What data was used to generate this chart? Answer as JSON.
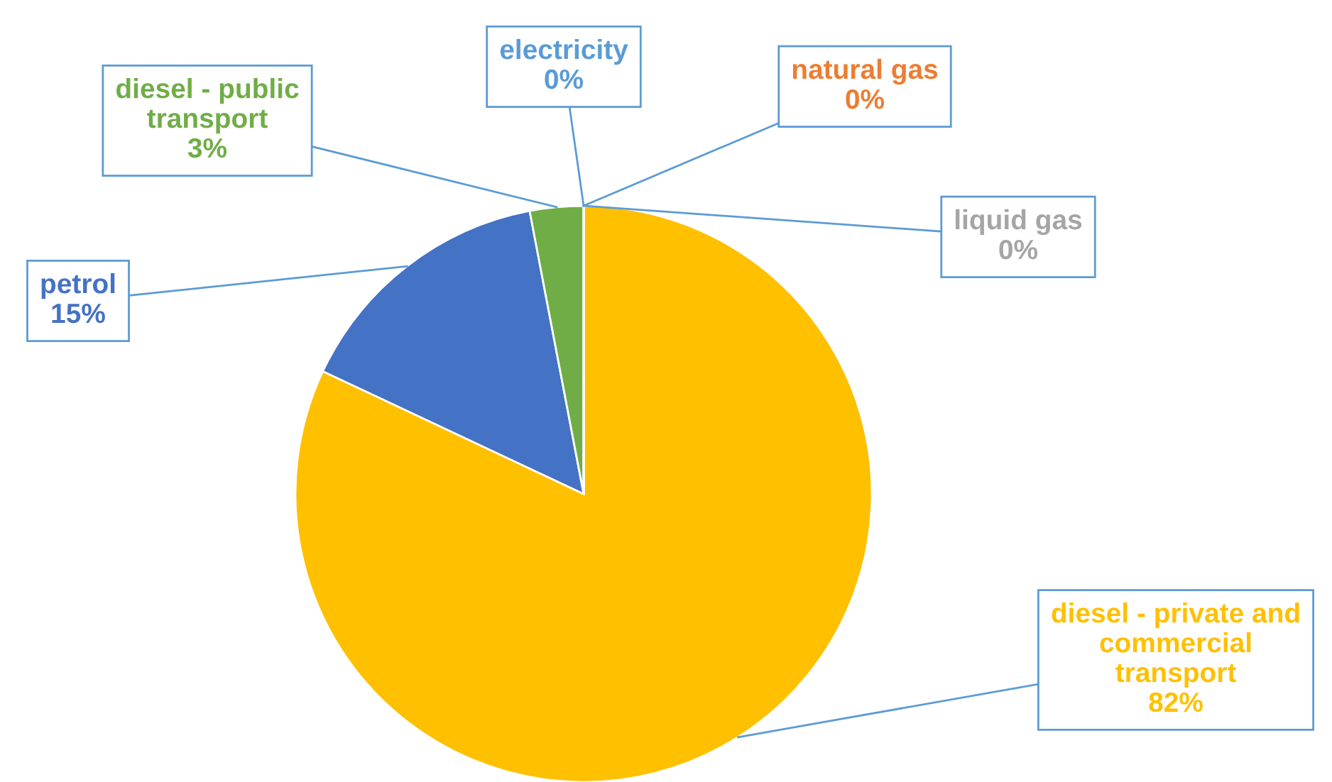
{
  "chart_data": {
    "type": "pie",
    "categories": [
      "diesel - private and\ncommercial\ntransport",
      "petrol",
      "diesel - public\ntransport",
      "electricity",
      "natural gas",
      "liquid gas"
    ],
    "values": [
      82,
      15,
      3,
      0,
      0,
      0
    ],
    "value_labels": [
      "82%",
      "15%",
      "3%",
      "0%",
      "0%",
      "0%"
    ],
    "colors": [
      "#ffc000",
      "#4472c4",
      "#70ad47",
      "#5b9bd5",
      "#ed7d31",
      "#a5a5a5"
    ],
    "legend": false
  }
}
